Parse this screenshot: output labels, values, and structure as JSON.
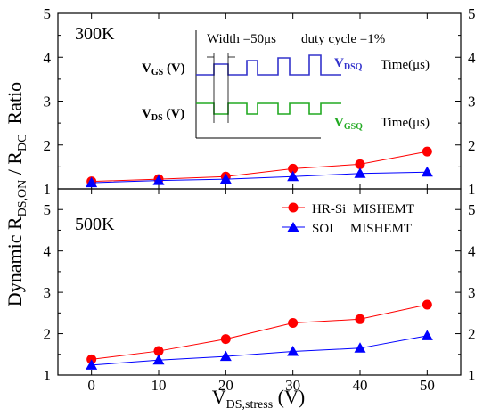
{
  "chart_data": [
    {
      "type": "line",
      "panel_label": "300K",
      "x": [
        0,
        10,
        20,
        30,
        40,
        50
      ],
      "xlim": [
        -5,
        55
      ],
      "ylim": [
        1,
        5
      ],
      "yticks": [
        1,
        2,
        3,
        4,
        5
      ],
      "grid": false,
      "series": [
        {
          "name": "HR-Si MISHEMT",
          "marker": "circle",
          "color": "#ff0000",
          "values": [
            1.17,
            1.22,
            1.28,
            1.46,
            1.56,
            1.85
          ]
        },
        {
          "name": "SOI MISHEMT",
          "marker": "triangle",
          "color": "#0000ff",
          "values": [
            1.14,
            1.19,
            1.22,
            1.28,
            1.35,
            1.38
          ]
        }
      ],
      "inset": {
        "width_text": "Width =50μs",
        "duty_text": "duty cycle =1%",
        "vgs_label": "V",
        "vgs_sub": "GS",
        "vgs_unit": " (V)",
        "vds_label": "V",
        "vds_sub": "DS",
        "vds_unit": " (V)",
        "vdsq_label": "V",
        "vdsq_sub": "DSQ",
        "vgsq_label": "V",
        "vgsq_sub": "GSQ",
        "time_label_1": "Time(μs)",
        "time_label_2": "Time(μs)",
        "vgs_color": "#3333cc",
        "vds_color": "#22aa22"
      }
    },
    {
      "type": "line",
      "panel_label": "500K",
      "x": [
        0,
        10,
        20,
        30,
        40,
        50
      ],
      "xlim": [
        -5,
        55
      ],
      "ylim": [
        1,
        5.5
      ],
      "yticks": [
        1,
        2,
        3,
        4,
        5
      ],
      "grid": false,
      "legend_position": "top-right",
      "series": [
        {
          "name": "HR-Si MISHEMT",
          "marker": "circle",
          "color": "#ff0000",
          "values": [
            1.38,
            1.58,
            1.87,
            2.26,
            2.35,
            2.7
          ]
        },
        {
          "name": "SOI MISHEMT",
          "marker": "triangle",
          "color": "#0000ff",
          "values": [
            1.24,
            1.36,
            1.45,
            1.57,
            1.65,
            1.95
          ]
        }
      ]
    }
  ],
  "xticks": [
    "0",
    "10",
    "20",
    "30",
    "40",
    "50"
  ],
  "xlabel": {
    "main": "V",
    "sub": "DS,stress",
    "unit": " (V)"
  },
  "ylabel": {
    "p1": "Dynamic R",
    "s1": "DS,ON",
    "p2": " / R",
    "s2": "DC",
    "p3": "  Ratio"
  },
  "legend": {
    "hr_si": "HR-Si  MISHEMT",
    "soi": "SOI     MISHEMT"
  }
}
